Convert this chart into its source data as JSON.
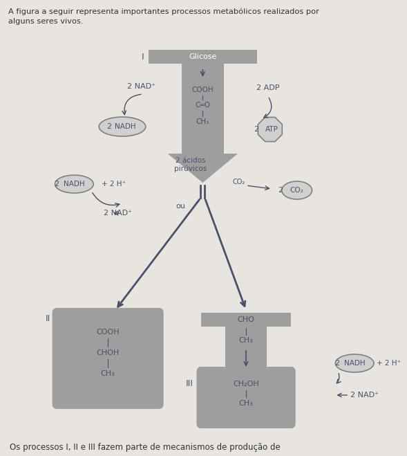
{
  "bg_color": "#e8e4df",
  "arrow_color": "#4a5068",
  "text_color": "#4a5068",
  "title_text": "A figura a seguir representa importantes processos metabólicos realizados por\nalguns seres vivos.",
  "footer_text": "Os processos I, II e III fazem parte de mecanismos de produção de",
  "process_I_label": "I",
  "process_II_label": "II",
  "process_III_label": "III",
  "glicose_label": "Glicose",
  "acidos_label": "2 ácidos\npirúvicos",
  "ou_label": "ou",
  "nadh_label": "NADH",
  "nad_plus": "2 NAD⁺",
  "plus2h": "+ 2 H⁺",
  "adp_label": "2 ADP",
  "atp_label": "ATP",
  "co2_label": "CO₂",
  "box_II_lines": [
    "COOH",
    "CHOH",
    "CH₃"
  ],
  "box_III_top_lines": [
    "CHO",
    "CH₃"
  ],
  "box_III_bottom_lines": [
    "CH₂OH",
    "CH₃"
  ],
  "box_I_lines": [
    "COOH",
    "C═O",
    "CH₃"
  ],
  "gray_medium": "#9e9e9e",
  "gray_light": "#b5b5b5",
  "ellipse_fc": "#d0d0d0",
  "ellipse_ec": "#808080"
}
